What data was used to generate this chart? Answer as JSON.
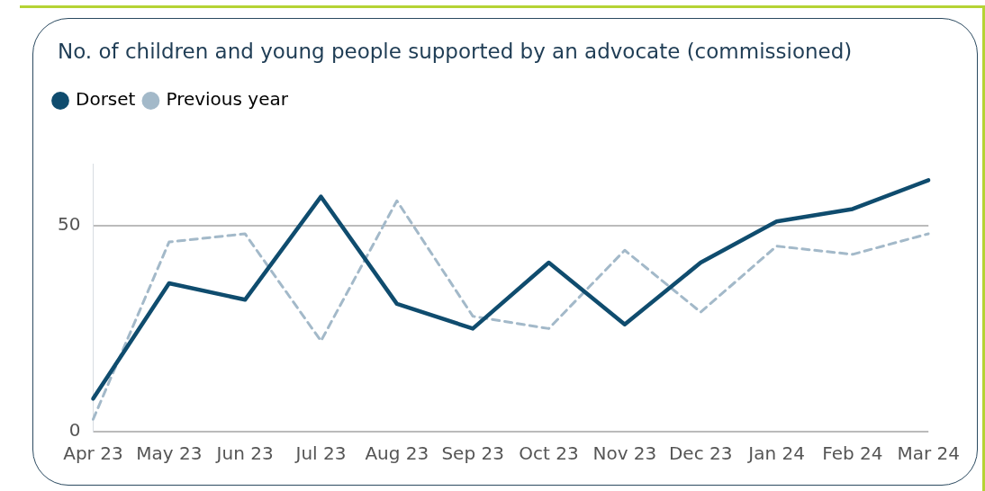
{
  "chart_data": {
    "type": "line",
    "title": "No. of children and young people supported by an advocate (commissioned)",
    "categories": [
      "Apr 23",
      "May 23",
      "Jun 23",
      "Jul 23",
      "Aug 23",
      "Sep 23",
      "Oct 23",
      "Nov 23",
      "Dec 23",
      "Jan 24",
      "Feb 24",
      "Mar 24"
    ],
    "series": [
      {
        "name": "Dorset",
        "color": "#0f4c6e",
        "values": [
          8,
          36,
          32,
          57,
          31,
          25,
          41,
          26,
          41,
          51,
          54,
          61
        ]
      },
      {
        "name": "Previous year",
        "color": "#a3b9c9",
        "line_style": "dashed",
        "values": [
          3,
          46,
          48,
          22,
          56,
          28,
          25,
          44,
          29,
          45,
          43,
          48
        ]
      }
    ],
    "ylim": [
      0,
      65
    ],
    "yticks": [
      0,
      50
    ],
    "grid": "y",
    "legend": "top left",
    "marker": "none"
  }
}
